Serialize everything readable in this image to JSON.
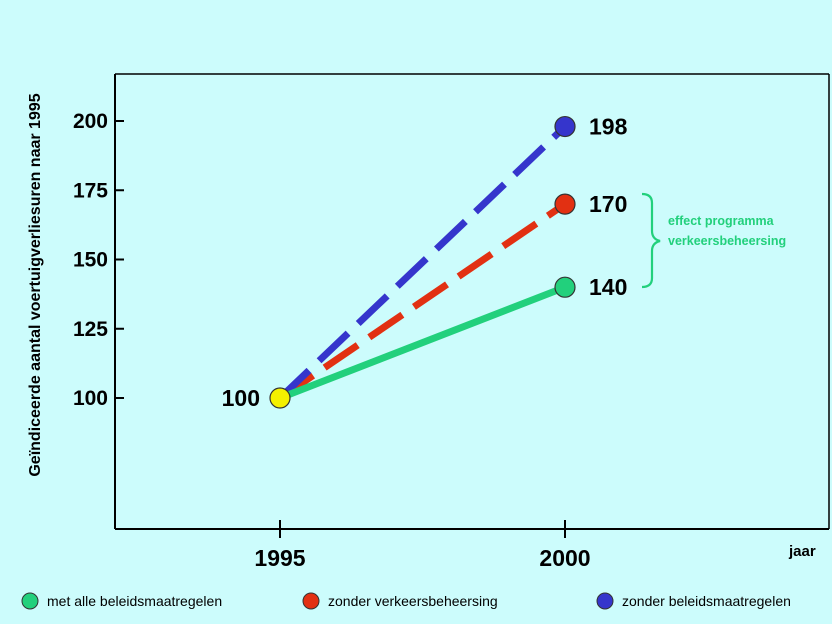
{
  "chart_data": {
    "type": "line",
    "xlabel": "jaar",
    "ylabel": "Geïndiceerde aantal voertuigverliesuren naar 1995",
    "x_ticks": [
      "1995",
      "2000"
    ],
    "y_ticks": [
      100,
      125,
      150,
      175,
      200
    ],
    "ylim": [
      50,
      215
    ],
    "x": [
      1995,
      2000
    ],
    "series": [
      {
        "name": "met alle beleidsmaatregelen",
        "values": [
          100,
          140
        ],
        "color": "#22d07c",
        "style": "solid"
      },
      {
        "name": "zonder verkeersbeheersing",
        "values": [
          100,
          170
        ],
        "color": "#e23012",
        "style": "dashed"
      },
      {
        "name": "zonder beleidsmaatregelen",
        "values": [
          100,
          198
        ],
        "color": "#3535cc",
        "style": "dashed"
      }
    ],
    "start_point": {
      "value": 100,
      "label": "100",
      "color": "#f4f000"
    },
    "end_labels": [
      "140",
      "170",
      "198"
    ],
    "annotation": {
      "lines": [
        "effect programma",
        "verkeersbeheersing"
      ],
      "color": "#22d07c"
    },
    "grid": false,
    "legend_position": "bottom"
  }
}
